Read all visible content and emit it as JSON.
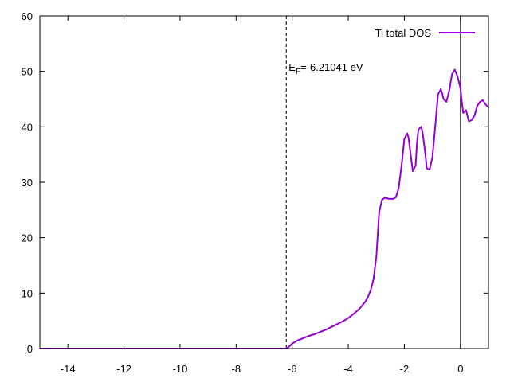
{
  "chart_data": {
    "type": "line",
    "title": "",
    "xlabel": "",
    "ylabel": "",
    "xlim": [
      -15,
      1
    ],
    "ylim": [
      0,
      60
    ],
    "x_ticks": [
      -14,
      -12,
      -10,
      -8,
      -6,
      -4,
      -2,
      0
    ],
    "y_ticks": [
      0,
      10,
      20,
      30,
      40,
      50,
      60
    ],
    "grid": false,
    "legend": {
      "position": "top-right"
    },
    "series": [
      {
        "name": "Ti total DOS",
        "color": "#9400d3",
        "x": [
          -15,
          -6.3,
          -6.2,
          -6.1,
          -6.0,
          -5.8,
          -5.6,
          -5.4,
          -5.2,
          -5.0,
          -4.8,
          -4.6,
          -4.4,
          -4.2,
          -4.0,
          -3.8,
          -3.6,
          -3.4,
          -3.3,
          -3.2,
          -3.1,
          -3.0,
          -2.9,
          -2.8,
          -2.7,
          -2.6,
          -2.55,
          -2.5,
          -2.4,
          -2.3,
          -2.2,
          -2.1,
          -2.0,
          -1.9,
          -1.85,
          -1.8,
          -1.7,
          -1.6,
          -1.55,
          -1.5,
          -1.4,
          -1.35,
          -1.3,
          -1.25,
          -1.2,
          -1.1,
          -1.0,
          -0.9,
          -0.8,
          -0.7,
          -0.65,
          -0.6,
          -0.5,
          -0.4,
          -0.3,
          -0.2,
          -0.1,
          0.0,
          0.05,
          0.1,
          0.2,
          0.3,
          0.4,
          0.5,
          0.6,
          0.7,
          0.8,
          0.9,
          1.0
        ],
        "y": [
          0,
          0,
          0,
          0.4,
          0.9,
          1.5,
          1.9,
          2.3,
          2.6,
          3.0,
          3.4,
          3.9,
          4.4,
          4.9,
          5.5,
          6.3,
          7.2,
          8.4,
          9.3,
          10.5,
          12.5,
          16.5,
          24.5,
          26.8,
          27.2,
          27.1,
          27.0,
          27.0,
          27.0,
          27.3,
          29.0,
          33.0,
          37.8,
          38.8,
          38.0,
          36.0,
          32.0,
          33.0,
          37.0,
          39.5,
          40.0,
          39.0,
          37.0,
          35.0,
          32.5,
          32.3,
          34.5,
          40.0,
          45.8,
          46.8,
          46.0,
          45.0,
          44.5,
          46.5,
          49.5,
          50.3,
          49.0,
          47.0,
          44.5,
          42.5,
          43.0,
          41.0,
          41.2,
          42.0,
          43.8,
          44.5,
          44.8,
          44.0,
          43.5
        ]
      }
    ],
    "annotations": {
      "fermi_level": {
        "x": -6.21041,
        "label_main": "E",
        "label_sub": "F",
        "label_rest": "=-6.21041 eV"
      },
      "zero_line_x": 0
    }
  }
}
